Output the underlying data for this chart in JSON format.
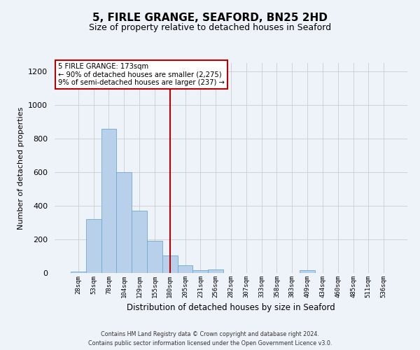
{
  "title": "5, FIRLE GRANGE, SEAFORD, BN25 2HD",
  "subtitle": "Size of property relative to detached houses in Seaford",
  "xlabel": "Distribution of detached houses by size in Seaford",
  "ylabel": "Number of detached properties",
  "bar_labels": [
    "28sqm",
    "53sqm",
    "78sqm",
    "104sqm",
    "129sqm",
    "155sqm",
    "180sqm",
    "205sqm",
    "231sqm",
    "256sqm",
    "282sqm",
    "307sqm",
    "333sqm",
    "358sqm",
    "383sqm",
    "409sqm",
    "434sqm",
    "460sqm",
    "485sqm",
    "511sqm",
    "536sqm"
  ],
  "bar_values": [
    10,
    320,
    860,
    600,
    370,
    190,
    105,
    45,
    15,
    20,
    0,
    0,
    0,
    0,
    0,
    15,
    0,
    0,
    0,
    0,
    0
  ],
  "bar_color": "#b8d0ea",
  "bar_edge_color": "#6aaad4",
  "property_line_x": 6.0,
  "annotation_title": "5 FIRLE GRANGE: 173sqm",
  "annotation_line1": "← 90% of detached houses are smaller (2,275)",
  "annotation_line2": "9% of semi-detached houses are larger (237) →",
  "annotation_box_color": "#ffffff",
  "annotation_box_edge_color": "#bb0000",
  "vline_color": "#bb0000",
  "grid_color": "#cccccc",
  "ylim": [
    0,
    1250
  ],
  "yticks": [
    0,
    200,
    400,
    600,
    800,
    1000,
    1200
  ],
  "background_color": "#eef2f9",
  "title_fontsize": 11,
  "subtitle_fontsize": 9,
  "xlabel_fontsize": 8.5,
  "ylabel_fontsize": 8,
  "footer_line1": "Contains HM Land Registry data © Crown copyright and database right 2024.",
  "footer_line2": "Contains public sector information licensed under the Open Government Licence v3.0."
}
